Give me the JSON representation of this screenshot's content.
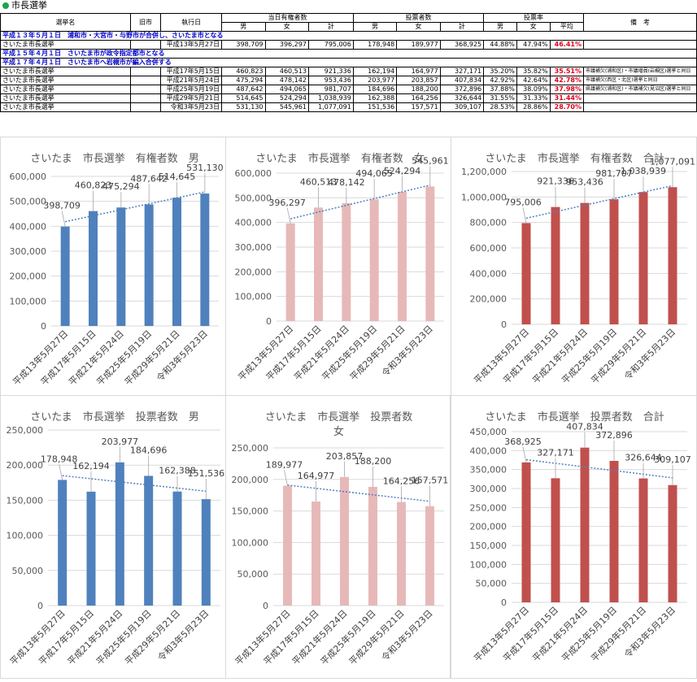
{
  "header": {
    "title": "市長選挙"
  },
  "table": {
    "headers": [
      "選挙名",
      "旧市",
      "執行日",
      "当日有権者数",
      "投票者数",
      "投票率",
      "備　考"
    ],
    "subheaders": [
      "男",
      "女",
      "計",
      "男",
      "女",
      "計",
      "男",
      "女",
      "平均"
    ],
    "rows": [
      {
        "type": "section",
        "text": "平成１３年５月１日　浦和市・大宮市・与野市が合併し、さいたま市となる"
      },
      {
        "type": "data",
        "cells": [
          "さいたま市長選挙",
          "",
          "平成13年5月27日",
          "398,709",
          "396,297",
          "795,006",
          "178,948",
          "189,977",
          "368,925",
          "44.88%",
          "47.94%",
          "46.41%",
          ""
        ]
      },
      {
        "type": "section",
        "text": "平成１５年４月１日　さいたま市が政令指定都市となる"
      },
      {
        "type": "section",
        "text": "平成１７年４月１日　さいたま市へ岩槻市が編入合併する"
      },
      {
        "type": "data",
        "cells": [
          "さいたま市長選挙",
          "",
          "平成17年5月15日",
          "460,823",
          "460,513",
          "921,336",
          "162,194",
          "164,977",
          "327,171",
          "35.20%",
          "35.82%",
          "35.51%",
          "市議補欠(浦和区)・市議増員(岩槻区)選挙と同日"
        ]
      },
      {
        "type": "data",
        "cells": [
          "さいたま市長選挙",
          "",
          "平成21年5月24日",
          "475,294",
          "478,142",
          "953,436",
          "203,977",
          "203,857",
          "407,834",
          "42.92%",
          "42.64%",
          "42.78%",
          "市議補欠(西区・北区)選挙と同日"
        ]
      },
      {
        "type": "data",
        "cells": [
          "さいたま市長選挙",
          "",
          "平成25年5月19日",
          "487,642",
          "494,065",
          "981,707",
          "184,696",
          "188,200",
          "372,896",
          "37.88%",
          "38.09%",
          "37.98%",
          "県議補欠(浦和区)・市議補欠(見沼区)選挙と同日"
        ]
      },
      {
        "type": "data",
        "cells": [
          "さいたま市長選挙",
          "",
          "平成29年5月21日",
          "514,645",
          "524,294",
          "1,038,939",
          "162,388",
          "164,256",
          "326,644",
          "31.55%",
          "31.33%",
          "31.44%",
          ""
        ]
      },
      {
        "type": "data",
        "cells": [
          "さいたま市長選挙",
          "",
          "令和3年5月23日",
          "531,130",
          "545,961",
          "1,077,091",
          "151,536",
          "157,571",
          "309,107",
          "28.53%",
          "28.86%",
          "28.70%",
          ""
        ]
      }
    ]
  },
  "chart_data": [
    {
      "type": "bar",
      "title": "さいたま　市長選挙　有権者数　男",
      "color": "#4f81bd",
      "categories": [
        "平成13年5月27日",
        "平成17年5月15日",
        "平成21年5月24日",
        "平成25年5月19日",
        "平成29年5月21日",
        "令和3年5月23日"
      ],
      "values": [
        398709,
        460823,
        475294,
        487642,
        514645,
        531130
      ],
      "labels": [
        "398,709",
        "460,823",
        "475,294",
        "487,642",
        "514,645",
        "531,130"
      ],
      "yticks": [
        "0",
        "100,000",
        "200,000",
        "300,000",
        "400,000",
        "500,000",
        "600,000"
      ],
      "ylim": [
        0,
        600000
      ],
      "trendline": true
    },
    {
      "type": "bar",
      "title": "さいたま　市長選挙　有権者数　女",
      "color": "#e6b9b8",
      "categories": [
        "平成13年5月27日",
        "平成17年5月15日",
        "平成21年5月24日",
        "平成25年5月19日",
        "平成29年5月21日",
        "令和3年5月23日"
      ],
      "values": [
        396297,
        460513,
        478142,
        494065,
        524294,
        545961
      ],
      "labels": [
        "396,297",
        "460,513",
        "478,142",
        "494,065",
        "524,294",
        "545,961"
      ],
      "yticks": [
        "0",
        "100,000",
        "200,000",
        "300,000",
        "400,000",
        "500,000",
        "600,000"
      ],
      "ylim": [
        0,
        600000
      ],
      "trendline": true
    },
    {
      "type": "bar",
      "title": "さいたま　市長選挙　有権者数　合計",
      "color": "#c0504d",
      "categories": [
        "平成13年5月27日",
        "平成17年5月15日",
        "平成21年5月24日",
        "平成25年5月19日",
        "平成29年5月21日",
        "令和3年5月23日"
      ],
      "values": [
        795006,
        921336,
        953436,
        981707,
        1038939,
        1077091
      ],
      "labels": [
        "795,006",
        "921,336",
        "953,436",
        "981,707",
        "1,038,939",
        "1,077,091"
      ],
      "yticks": [
        "0",
        "200,000",
        "400,000",
        "600,000",
        "800,000",
        "1,000,000",
        "1,200,000"
      ],
      "ylim": [
        0,
        1200000
      ],
      "trendline": true
    },
    {
      "type": "bar",
      "title": "さいたま　市長選挙　投票者数　男",
      "color": "#4f81bd",
      "categories": [
        "平成13年5月27日",
        "平成17年5月15日",
        "平成21年5月24日",
        "平成25年5月19日",
        "平成29年5月21日",
        "令和3年5月23日"
      ],
      "values": [
        178948,
        162194,
        203977,
        184696,
        162388,
        151536
      ],
      "labels": [
        "178,948",
        "162,194",
        "203,977",
        "184,696",
        "162,388",
        "151,536"
      ],
      "yticks": [
        "0",
        "50,000",
        "100,000",
        "150,000",
        "200,000",
        "250,000"
      ],
      "ylim": [
        0,
        250000
      ],
      "trendline": true
    },
    {
      "type": "bar",
      "title": "さいたま　市長選挙　投票者数　女",
      "color": "#e6b9b8",
      "categories": [
        "平成13年5月27日",
        "平成17年5月15日",
        "平成21年5月24日",
        "平成25年5月19日",
        "平成29年5月21日",
        "令和3年5月23日"
      ],
      "values": [
        189977,
        164977,
        203857,
        188200,
        164256,
        157571
      ],
      "labels": [
        "189,977",
        "164,977",
        "203,857",
        "188,200",
        "164,256",
        "157,571"
      ],
      "yticks": [
        "0",
        "50,000",
        "100,000",
        "150,000",
        "200,000",
        "250,000"
      ],
      "ylim": [
        0,
        250000
      ],
      "trendline": true
    },
    {
      "type": "bar",
      "title": "さいたま　市長選挙　投票者数　合計",
      "color": "#c0504d",
      "categories": [
        "平成13年5月27日",
        "平成17年5月15日",
        "平成21年5月24日",
        "平成25年5月19日",
        "平成29年5月21日",
        "令和3年5月23日"
      ],
      "values": [
        368925,
        327171,
        407834,
        372896,
        326644,
        309107
      ],
      "labels": [
        "368,925",
        "327,171",
        "407,834",
        "372,896",
        "326,644",
        "309,107"
      ],
      "yticks": [
        "0",
        "50,000",
        "100,000",
        "150,000",
        "200,000",
        "250,000",
        "300,000",
        "350,000",
        "400,000",
        "450,000"
      ],
      "ylim": [
        0,
        450000
      ],
      "trendline": true
    }
  ]
}
